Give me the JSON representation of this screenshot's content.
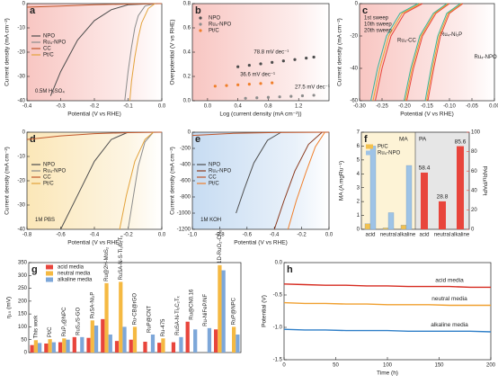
{
  "chart_data": [
    {
      "type": "line",
      "label": "a",
      "xlabel": "Potential (V vs RHE)",
      "ylabel": "Current density (mA cm⁻²)",
      "xlim": [
        -0.4,
        0
      ],
      "ylim": [
        -40,
        0
      ],
      "xticks": [
        -0.4,
        -0.3,
        -0.2,
        -0.1,
        {
          "value": 0,
          "label": "0.0"
        }
      ],
      "yticks": [
        -40,
        -30,
        -20,
        -10,
        0
      ],
      "annotations": [
        "0.5M H₂SO₄"
      ],
      "legend": "center left",
      "series": [
        {
          "name": "NPO",
          "color": "#4d4d4d",
          "x": [
            -0.02,
            -0.1,
            -0.15,
            -0.2,
            -0.25,
            -0.3,
            -0.33
          ],
          "values": [
            0,
            -0.5,
            -2.5,
            -7,
            -15,
            -28,
            -38
          ]
        },
        {
          "name": "Ru₄-NPO",
          "color": "#8c8c8c",
          "x": [
            -0.02,
            -0.05,
            -0.07,
            -0.08,
            -0.09,
            -0.1,
            -0.11
          ],
          "values": [
            0,
            -1,
            -5,
            -10,
            -18,
            -28,
            -40
          ]
        },
        {
          "name": "CC",
          "color": "#c0562b",
          "x": [
            -0.4,
            -0.3,
            -0.2,
            -0.1,
            0
          ],
          "values": [
            -1.5,
            -1,
            -0.5,
            -0.2,
            0
          ]
        },
        {
          "name": "Pt/C",
          "color": "#e3a33b",
          "x": [
            -0.02,
            -0.04,
            -0.06,
            -0.07,
            -0.08,
            -0.09,
            -0.095
          ],
          "values": [
            0,
            -2,
            -8,
            -14,
            -22,
            -32,
            -40
          ]
        }
      ]
    },
    {
      "type": "scatter",
      "label": "b",
      "xlabel": "Log (current density (mA cm⁻²))",
      "ylabel": "Overpotential (V vs RHE)",
      "xlim": [
        -0.2,
        1.6
      ],
      "ylim": [
        0,
        0.8
      ],
      "xticks": [
        {
          "value": 0,
          "label": "0.0"
        },
        0.4,
        0.8,
        1.2
      ],
      "yticks": [
        {
          "value": 0,
          "label": "0.0"
        },
        0.2,
        0.4,
        0.6,
        0.8
      ],
      "annotations": [
        "78.8 mV dec⁻¹",
        "36.6 mV dec⁻¹",
        "27.5 mV dec⁻¹"
      ],
      "legend": "upper left",
      "series": [
        {
          "name": "NPO",
          "color": "#4d4d4d",
          "x": [
            0.4,
            0.55,
            0.7,
            0.85,
            1.0,
            1.15,
            1.3,
            1.4
          ],
          "values": [
            0.28,
            0.292,
            0.304,
            0.316,
            0.328,
            0.339,
            0.351,
            0.359
          ]
        },
        {
          "name": "Ru₄-NPO",
          "color": "#8c8c8c",
          "x": [
            0.5,
            0.65,
            0.8,
            0.95,
            1.1,
            1.25,
            1.4
          ],
          "values": [
            0.02,
            0.024,
            0.028,
            0.032,
            0.036,
            0.041,
            0.045
          ]
        },
        {
          "name": "Pt/C",
          "color": "#f07f2a",
          "x": [
            0.1,
            0.25,
            0.4,
            0.55,
            0.7,
            0.85
          ],
          "values": [
            0.12,
            0.125,
            0.131,
            0.136,
            0.142,
            0.147
          ]
        }
      ]
    },
    {
      "type": "line",
      "label": "c",
      "xlabel": "Potential (V vs RHE)",
      "ylabel": "Current density (mA cm⁻²)",
      "xlim": [
        -0.3,
        0
      ],
      "ylim": [
        -60,
        0
      ],
      "xticks": [
        {
          "value": -0.3,
          "label": "-0.30"
        },
        -0.25,
        {
          "value": -0.2,
          "label": "-0.20"
        },
        -0.15,
        {
          "value": -0.1,
          "label": "-0.10"
        },
        -0.05,
        {
          "value": 0,
          "label": "0.00"
        }
      ],
      "yticks": [
        -60,
        -40,
        -20,
        0
      ],
      "annotations": [
        "Ru₄-CC",
        "Ru₄-Ni₂P",
        "Ru₄-NPO"
      ],
      "legend": "upper left",
      "series": [
        {
          "name": "1st sweep",
          "color": "#e8453c",
          "curves": [
            {
              "x": [
                -0.16,
                -0.2,
                -0.23,
                -0.25,
                -0.265
              ],
              "values": [
                0,
                -6,
                -20,
                -40,
                -60
              ]
            },
            {
              "x": [
                -0.1,
                -0.13,
                -0.16,
                -0.18,
                -0.195
              ],
              "values": [
                0,
                -6,
                -20,
                -40,
                -60
              ]
            },
            {
              "x": [
                -0.07,
                -0.1,
                -0.12,
                -0.135,
                -0.148
              ],
              "values": [
                0,
                -6,
                -20,
                -40,
                -60
              ]
            }
          ]
        },
        {
          "name": "10th sweep",
          "color": "#f0a030",
          "curves": [
            {
              "x": [
                -0.165,
                -0.205,
                -0.235,
                -0.255,
                -0.27
              ],
              "values": [
                0,
                -6,
                -20,
                -40,
                -60
              ]
            },
            {
              "x": [
                -0.103,
                -0.133,
                -0.163,
                -0.183,
                -0.198
              ],
              "values": [
                0,
                -6,
                -20,
                -40,
                -60
              ]
            },
            {
              "x": [
                -0.073,
                -0.103,
                -0.123,
                -0.138,
                -0.151
              ],
              "values": [
                0,
                -6,
                -20,
                -40,
                -60
              ]
            }
          ]
        },
        {
          "name": "20th sweep",
          "color": "#3bb59a",
          "curves": [
            {
              "x": [
                -0.17,
                -0.21,
                -0.24,
                -0.26,
                -0.275
              ],
              "values": [
                0,
                -6,
                -20,
                -40,
                -60
              ]
            },
            {
              "x": [
                -0.106,
                -0.136,
                -0.166,
                -0.186,
                -0.201
              ],
              "values": [
                0,
                -6,
                -20,
                -40,
                -60
              ]
            },
            {
              "x": [
                -0.076,
                -0.106,
                -0.126,
                -0.141,
                -0.154
              ],
              "values": [
                0,
                -6,
                -20,
                -40,
                -60
              ]
            }
          ]
        }
      ]
    },
    {
      "type": "line",
      "label": "d",
      "xlabel": "Potential (V vs RHE)",
      "ylabel": "Current density (mA cm⁻²)",
      "xlim": [
        -0.8,
        0
      ],
      "ylim": [
        -40,
        0
      ],
      "xticks": [
        -0.8,
        -0.6,
        -0.4,
        -0.2,
        {
          "value": 0,
          "label": "0.0"
        }
      ],
      "yticks": [
        -40,
        -30,
        -20,
        -10,
        0
      ],
      "annotations": [
        "1M PBS"
      ],
      "legend": "center left",
      "series": [
        {
          "name": "NPO",
          "color": "#4d4d4d",
          "x": [
            -0.2,
            -0.3,
            -0.4,
            -0.5,
            -0.6
          ],
          "values": [
            0,
            -3,
            -12,
            -26,
            -40
          ]
        },
        {
          "name": "Ru₄-NPO",
          "color": "#8c8c8c",
          "x": [
            -0.05,
            -0.1,
            -0.14,
            -0.17,
            -0.2
          ],
          "values": [
            0,
            -4,
            -14,
            -27,
            -40
          ]
        },
        {
          "name": "CC",
          "color": "#c0562b",
          "x": [
            -0.8,
            -0.6,
            -0.4,
            -0.2,
            0
          ],
          "values": [
            -3,
            -1.5,
            -0.6,
            -0.2,
            0
          ]
        },
        {
          "name": "Pt/C",
          "color": "#e3a33b",
          "x": [
            -0.05,
            -0.1,
            -0.16,
            -0.21,
            -0.25
          ],
          "values": [
            0,
            -3,
            -12,
            -26,
            -40
          ]
        }
      ]
    },
    {
      "type": "line",
      "label": "e",
      "xlabel": "Potential (V vs RHE)",
      "ylabel": "Current density (mA cm⁻²)",
      "xlim": [
        -1.0,
        0
      ],
      "ylim": [
        -1200,
        0
      ],
      "xticks": [
        {
          "value": -1,
          "label": "-1.0"
        },
        -0.8,
        -0.6,
        -0.4,
        -0.2,
        {
          "value": 0,
          "label": "0.0"
        }
      ],
      "yticks": [
        -1200,
        -1000,
        -800,
        -600,
        -400,
        -200,
        0
      ],
      "annotations": [
        "1M KOH"
      ],
      "legend": "center left",
      "series": [
        {
          "name": "NPO",
          "color": "#4d4d4d",
          "x": [
            -0.35,
            -0.45,
            -0.55,
            -0.62,
            -0.68
          ],
          "values": [
            0,
            -100,
            -380,
            -700,
            -1000
          ]
        },
        {
          "name": "Ru₄-NPO",
          "color": "#8a3a1e",
          "x": [
            -0.05,
            -0.15,
            -0.25,
            -0.33,
            -0.4
          ],
          "values": [
            0,
            -150,
            -480,
            -850,
            -1200
          ]
        },
        {
          "name": "CC",
          "color": "#c0562b",
          "x": [
            -1.0,
            -0.7,
            -0.4,
            0
          ],
          "values": [
            -40,
            -15,
            -5,
            0
          ]
        },
        {
          "name": "Pt/C",
          "color": "#f07f2a",
          "x": [
            -0.03,
            -0.1,
            -0.17,
            -0.24,
            -0.3
          ],
          "values": [
            0,
            -180,
            -500,
            -850,
            -1200
          ]
        }
      ]
    },
    {
      "type": "bar",
      "label": "f",
      "ylabel": "MA (A mgRu⁻¹)",
      "y2label": "PARu/PAPt",
      "sections": [
        "MA",
        "PA"
      ],
      "categories": [
        "acid",
        "neutral",
        "alkaline"
      ],
      "ylim": [
        0,
        7
      ],
      "yticks": [
        0,
        1,
        2,
        3,
        4,
        5,
        6,
        7
      ],
      "y2lim": [
        0,
        100
      ],
      "y2ticks": [
        0,
        20,
        40,
        60,
        80,
        100
      ],
      "legend": "upper left",
      "series": [
        {
          "name": "Pt/C",
          "color": "#f2c14e",
          "values": [
            0.4,
            0.1,
            0.3
          ]
        },
        {
          "name": "Ru₄-NPO",
          "color": "#9ec3e6",
          "values": [
            6.0,
            1.2,
            4.6
          ]
        }
      ],
      "pa_values": [
        58.4,
        28.8,
        85.6
      ],
      "pa_color": "#e8453c"
    },
    {
      "type": "bar",
      "label": "g",
      "ylabel": "η₁₀ (mV)",
      "ylim": [
        0,
        350
      ],
      "yticks": [
        0,
        50,
        100,
        150,
        200,
        250,
        300,
        350
      ],
      "legend": "upper left",
      "categories": [
        "This work",
        "Pt/C",
        "RuP₂@NPC",
        "RuS₂/S-GO",
        "RuSA-Ni₂P",
        "Ru@2H-MoS₂",
        "RuSA-N-S-Ti₃C₂Tₓ",
        "Ru-CB@rGO",
        "RuP@CNT",
        "Ru-475",
        "RuSA-N-Ti₃C₂Tₓ",
        "Ru@CN0.16",
        "Ru-NiFeP/NF",
        "1D-RuO₂-CNₓ",
        "RuP@NPC"
      ],
      "series": [
        {
          "name": "acid media",
          "color": "#e8453c",
          "values": [
            29,
            35,
            40,
            60,
            57,
            130,
            45,
            50,
            42,
            38,
            40,
            120,
            null,
            90,
            null
          ]
        },
        {
          "name": "neutral media",
          "color": "#f5b942",
          "values": [
            48,
            52,
            55,
            null,
            125,
            270,
            275,
            100,
            null,
            55,
            null,
            null,
            null,
            340,
            100
          ]
        },
        {
          "name": "alkaline media",
          "color": "#7da7d9",
          "values": [
            37,
            40,
            50,
            60,
            105,
            70,
            100,
            null,
            70,
            null,
            60,
            90,
            95,
            320,
            70
          ]
        }
      ]
    },
    {
      "type": "line",
      "label": "h",
      "xlabel": "Time (h)",
      "ylabel": "Potential (V)",
      "xlim": [
        0,
        200
      ],
      "ylim": [
        -1.5,
        0
      ],
      "xticks": [
        0,
        50,
        100,
        150,
        200
      ],
      "yticks": [
        -1.5,
        {
          "value": -1,
          "label": "-1.0"
        },
        -0.5,
        {
          "value": 0,
          "label": "0.0"
        }
      ],
      "legend": "inline",
      "series": [
        {
          "name": "acid media",
          "color": "#d62b20",
          "x": [
            0,
            20,
            40,
            60,
            80,
            100,
            120,
            140,
            160,
            180,
            200
          ],
          "values": [
            -0.33,
            -0.34,
            -0.35,
            -0.35,
            -0.36,
            -0.36,
            -0.37,
            -0.37,
            -0.37,
            -0.38,
            -0.38
          ]
        },
        {
          "name": "neutral media",
          "color": "#f0a030",
          "x": [
            0,
            20,
            40,
            60,
            80,
            100,
            120,
            140,
            160,
            180,
            200
          ],
          "values": [
            -0.62,
            -0.63,
            -0.63,
            -0.64,
            -0.64,
            -0.65,
            -0.65,
            -0.65,
            -0.66,
            -0.66,
            -0.66
          ]
        },
        {
          "name": "alkaline media",
          "color": "#2f7fc8",
          "x": [
            0,
            20,
            40,
            60,
            80,
            100,
            120,
            140,
            160,
            180,
            200
          ],
          "values": [
            -1.03,
            -1.04,
            -1.04,
            -1.05,
            -1.05,
            -1.05,
            -1.06,
            -1.06,
            -1.06,
            -1.06,
            -1.07
          ]
        }
      ]
    }
  ]
}
